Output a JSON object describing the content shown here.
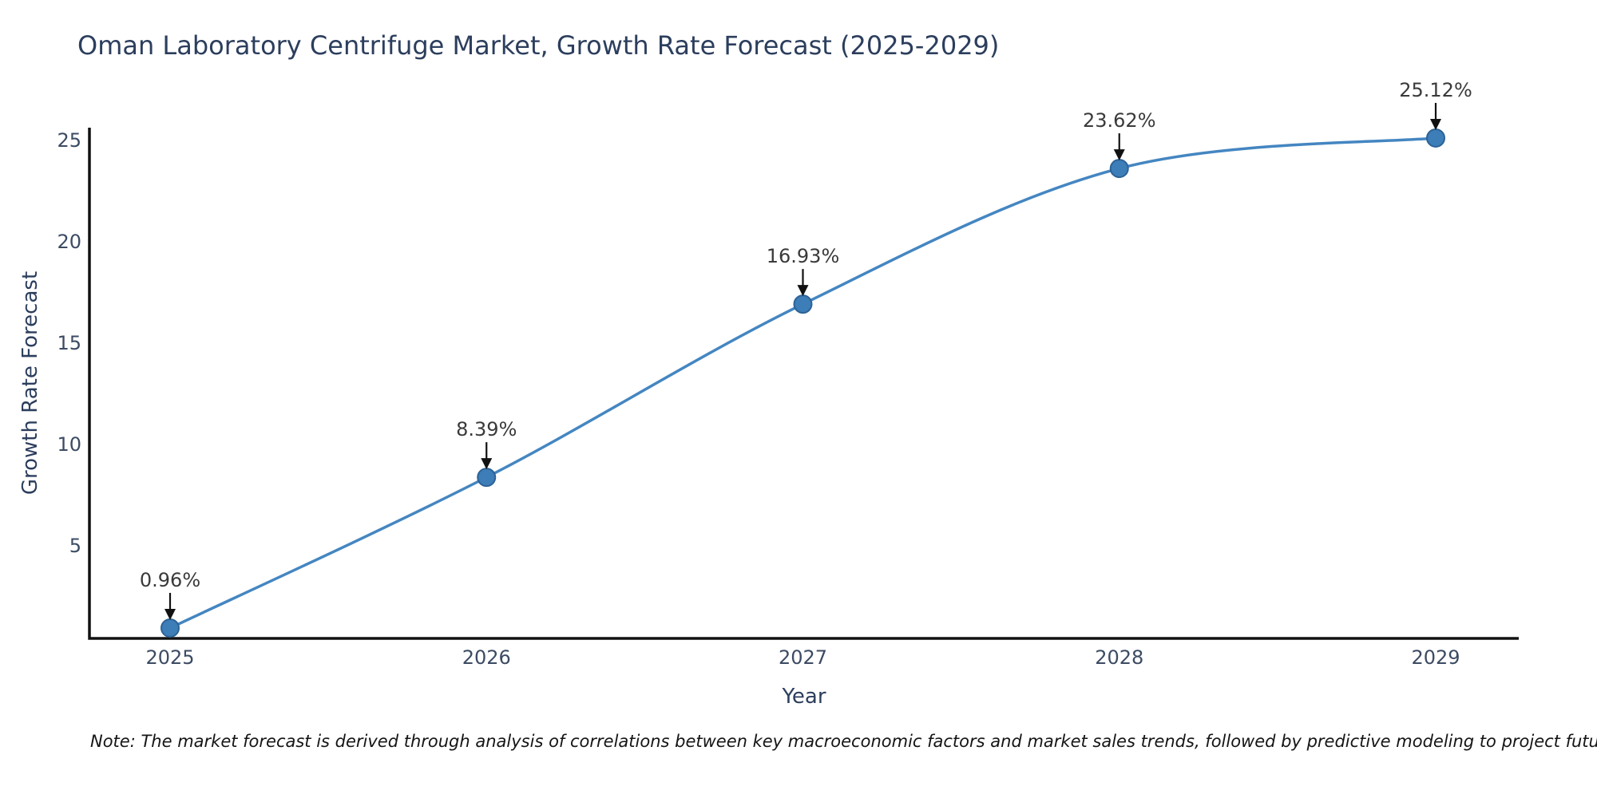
{
  "chart_data": {
    "type": "line",
    "title": "Oman Laboratory Centrifuge Market, Growth Rate Forecast (2025-2029)",
    "xlabel": "Year",
    "ylabel": "Growth Rate Forecast",
    "x": [
      2025,
      2026,
      2027,
      2028,
      2029
    ],
    "values": [
      0.96,
      8.39,
      16.93,
      23.62,
      25.12
    ],
    "point_labels": [
      "0.96%",
      "8.39%",
      "16.93%",
      "23.62%",
      "25.12%"
    ],
    "xtick_labels": [
      "2025",
      "2026",
      "2027",
      "2028",
      "2029"
    ],
    "ytick_values": [
      5,
      10,
      15,
      20,
      25
    ],
    "ylim": [
      0.45,
      25.6
    ],
    "grid": false,
    "legend": null,
    "line_color": "#4486c1",
    "marker_color": "#3d7db8",
    "marker_edge_color": "#2d6296",
    "axis_color": "#111111",
    "annotation_arrow_color": "#111111",
    "note": "Note: The market forecast is derived through analysis of correlations between key macroeconomic factors and market sales trends, followed by predictive modeling to project future sales"
  }
}
